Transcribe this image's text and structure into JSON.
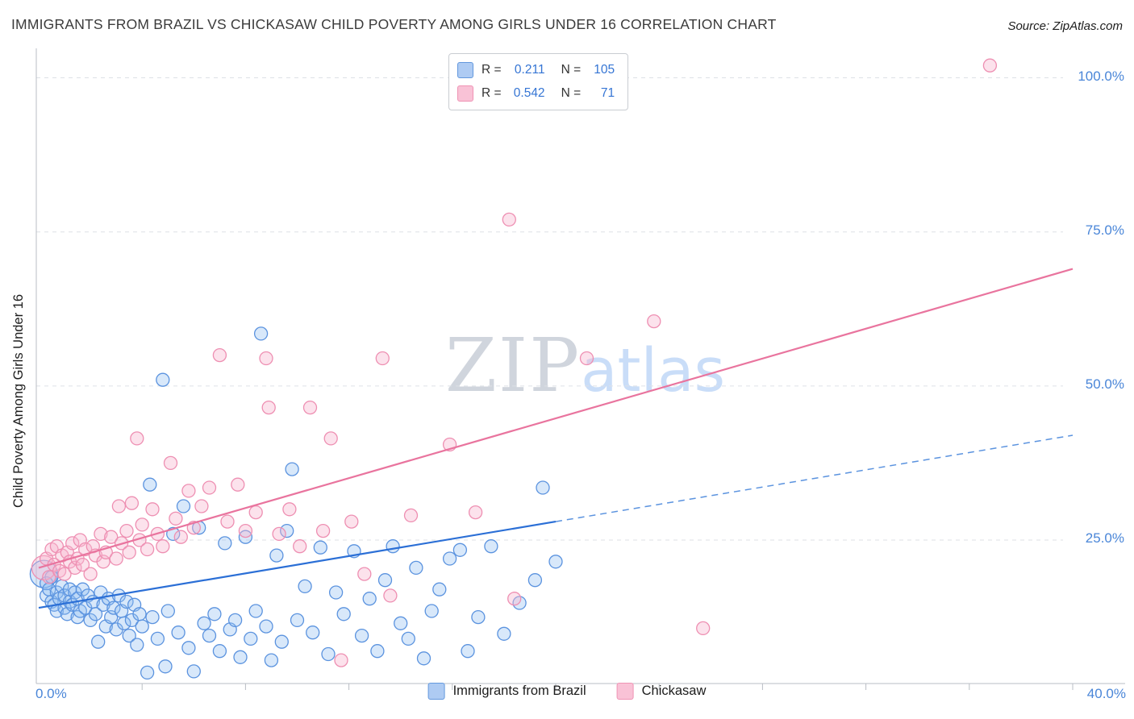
{
  "title": "IMMIGRANTS FROM BRAZIL VS CHICKASAW CHILD POVERTY AMONG GIRLS UNDER 16 CORRELATION CHART",
  "source": "Source: ZipAtlas.com",
  "watermark": {
    "zip": "ZIP",
    "atlas": "atlas"
  },
  "legend_box": {
    "r_label": "R =",
    "n_label": "N =",
    "rows": [
      {
        "series": "Immigrants from Brazil",
        "r": "0.211",
        "n": "105"
      },
      {
        "series": "Chickasaw",
        "r": "0.542",
        "n": "71"
      }
    ]
  },
  "series_legend": [
    {
      "label": "Immigrants from Brazil"
    },
    {
      "label": "Chickasaw"
    }
  ],
  "chart_data": {
    "type": "scatter",
    "title": "IMMIGRANTS FROM BRAZIL VS CHICKASAW CHILD POVERTY AMONG GIRLS UNDER 16 CORRELATION CHART",
    "xlabel": "",
    "ylabel": "Child Poverty Among Girls Under 16",
    "xlim": [
      0,
      40
    ],
    "ylim": [
      0,
      104
    ],
    "grid": "horizontal-dashed",
    "legend_position": "bottom-center",
    "x_ticks": [
      {
        "value": 0,
        "label": "0.0%"
      },
      {
        "value": 40,
        "label": "40.0%"
      }
    ],
    "y_ticks": [
      {
        "value": 100,
        "label": "100.0%"
      },
      {
        "value": 75,
        "label": "75.0%"
      },
      {
        "value": 50,
        "label": "50.0%"
      },
      {
        "value": 25,
        "label": "25.0%"
      }
    ],
    "y_gridlines": [
      25,
      50,
      75,
      100
    ],
    "x_tick_marks": [
      4,
      8,
      12,
      16,
      20,
      24,
      28,
      32,
      36,
      40
    ],
    "series": [
      {
        "id": "brazil",
        "name": "Immigrants from Brazil",
        "R": 0.211,
        "N": 105,
        "fill": "#8fbcf2",
        "stroke": "#5b93df",
        "fill_opacity": 0.35,
        "points": [
          [
            0.2,
            19.5,
            17
          ],
          [
            0.3,
            18.0
          ],
          [
            0.3,
            16.0
          ],
          [
            0.4,
            17.0
          ],
          [
            0.5,
            15.0
          ],
          [
            0.5,
            19.0
          ],
          [
            0.6,
            14.5
          ],
          [
            0.7,
            16.5
          ],
          [
            0.7,
            13.5
          ],
          [
            0.8,
            15.5
          ],
          [
            0.9,
            17.5
          ],
          [
            1.0,
            14.0
          ],
          [
            1.0,
            16.0
          ],
          [
            1.1,
            13.0
          ],
          [
            1.2,
            15.0
          ],
          [
            1.2,
            17.0
          ],
          [
            1.3,
            14.5
          ],
          [
            1.4,
            16.5
          ],
          [
            1.5,
            12.5
          ],
          [
            1.5,
            15.5
          ],
          [
            1.6,
            13.5
          ],
          [
            1.7,
            17.0
          ],
          [
            1.8,
            14.0
          ],
          [
            1.9,
            16.0
          ],
          [
            2.0,
            12.0
          ],
          [
            2.1,
            15.0
          ],
          [
            2.2,
            13.0
          ],
          [
            2.3,
            8.5
          ],
          [
            2.4,
            16.5
          ],
          [
            2.5,
            14.5
          ],
          [
            2.6,
            11.0
          ],
          [
            2.7,
            15.5
          ],
          [
            2.8,
            12.5
          ],
          [
            2.9,
            14.0
          ],
          [
            3.0,
            10.5
          ],
          [
            3.1,
            16.0
          ],
          [
            3.2,
            13.5
          ],
          [
            3.3,
            11.5
          ],
          [
            3.4,
            15.0
          ],
          [
            3.5,
            9.5
          ],
          [
            3.6,
            12.0
          ],
          [
            3.7,
            14.5
          ],
          [
            3.8,
            8.0
          ],
          [
            3.9,
            13.0
          ],
          [
            4.0,
            11.0
          ],
          [
            4.2,
            3.5
          ],
          [
            4.3,
            34.0
          ],
          [
            4.4,
            12.5
          ],
          [
            4.6,
            9.0
          ],
          [
            4.8,
            51.0
          ],
          [
            4.9,
            4.5
          ],
          [
            5.0,
            13.5
          ],
          [
            5.2,
            26.0
          ],
          [
            5.4,
            10.0
          ],
          [
            5.6,
            30.5
          ],
          [
            5.8,
            7.5
          ],
          [
            6.0,
            3.7
          ],
          [
            6.2,
            27.0
          ],
          [
            6.4,
            11.5
          ],
          [
            6.6,
            9.5
          ],
          [
            6.8,
            13.0
          ],
          [
            7.0,
            7.0
          ],
          [
            7.2,
            24.5
          ],
          [
            7.4,
            10.5
          ],
          [
            7.6,
            12.0
          ],
          [
            7.8,
            6.0
          ],
          [
            8.0,
            25.5
          ],
          [
            8.2,
            9.0
          ],
          [
            8.4,
            13.5
          ],
          [
            8.6,
            58.5
          ],
          [
            8.8,
            11.0
          ],
          [
            9.0,
            5.5
          ],
          [
            9.2,
            22.5
          ],
          [
            9.4,
            8.5
          ],
          [
            9.6,
            26.5
          ],
          [
            9.8,
            36.5
          ],
          [
            10.0,
            12.0
          ],
          [
            10.3,
            17.5
          ],
          [
            10.6,
            10.0
          ],
          [
            10.9,
            23.8
          ],
          [
            11.2,
            6.5
          ],
          [
            11.5,
            16.5
          ],
          [
            11.8,
            13.0
          ],
          [
            12.2,
            23.2
          ],
          [
            12.5,
            9.5
          ],
          [
            12.8,
            15.5
          ],
          [
            13.1,
            7.0
          ],
          [
            13.4,
            18.5
          ],
          [
            13.7,
            24.0
          ],
          [
            14.0,
            11.5
          ],
          [
            14.3,
            9.0
          ],
          [
            14.6,
            20.5
          ],
          [
            14.9,
            5.8
          ],
          [
            15.2,
            13.5
          ],
          [
            15.5,
            17.0
          ],
          [
            15.9,
            22.0
          ],
          [
            16.3,
            23.4
          ],
          [
            16.6,
            7.0
          ],
          [
            17.0,
            12.5
          ],
          [
            17.5,
            24.0
          ],
          [
            18.0,
            9.8
          ],
          [
            18.6,
            14.8
          ],
          [
            19.2,
            18.5
          ],
          [
            19.5,
            33.5
          ],
          [
            20.0,
            21.5
          ]
        ]
      },
      {
        "id": "chickasaw",
        "name": "Chickasaw",
        "R": 0.542,
        "N": 71,
        "fill": "#f7b6cf",
        "stroke": "#ee8fb2",
        "fill_opacity": 0.4,
        "points": [
          [
            0.2,
            20.5,
            15
          ],
          [
            0.3,
            22.0
          ],
          [
            0.4,
            19.0
          ],
          [
            0.5,
            23.5
          ],
          [
            0.6,
            21.0
          ],
          [
            0.7,
            24.0
          ],
          [
            0.8,
            20.0
          ],
          [
            0.9,
            22.5
          ],
          [
            1.0,
            19.5
          ],
          [
            1.1,
            23.0
          ],
          [
            1.2,
            21.5
          ],
          [
            1.3,
            24.5
          ],
          [
            1.4,
            20.5
          ],
          [
            1.5,
            22.0
          ],
          [
            1.6,
            25.0
          ],
          [
            1.7,
            21.0
          ],
          [
            1.8,
            23.5
          ],
          [
            2.0,
            19.5
          ],
          [
            2.1,
            24.0
          ],
          [
            2.2,
            22.5
          ],
          [
            2.4,
            26.0
          ],
          [
            2.5,
            21.5
          ],
          [
            2.6,
            23.0
          ],
          [
            2.8,
            25.5
          ],
          [
            3.0,
            22.0
          ],
          [
            3.1,
            30.5
          ],
          [
            3.2,
            24.5
          ],
          [
            3.4,
            26.5
          ],
          [
            3.5,
            23.0
          ],
          [
            3.6,
            31.0
          ],
          [
            3.8,
            41.5
          ],
          [
            3.9,
            25.0
          ],
          [
            4.0,
            27.5
          ],
          [
            4.2,
            23.5
          ],
          [
            4.4,
            30.0
          ],
          [
            4.6,
            26.0
          ],
          [
            4.8,
            24.0
          ],
          [
            5.1,
            37.5
          ],
          [
            5.3,
            28.5
          ],
          [
            5.5,
            25.5
          ],
          [
            5.8,
            33.0
          ],
          [
            6.0,
            27.0
          ],
          [
            6.3,
            30.5
          ],
          [
            6.6,
            33.5
          ],
          [
            7.0,
            55.0
          ],
          [
            7.3,
            28.0
          ],
          [
            7.7,
            34.0
          ],
          [
            8.0,
            26.5
          ],
          [
            8.4,
            29.5
          ],
          [
            8.8,
            54.5
          ],
          [
            8.9,
            46.5
          ],
          [
            9.3,
            26.0
          ],
          [
            9.7,
            30.0
          ],
          [
            10.1,
            24.0
          ],
          [
            10.5,
            46.5
          ],
          [
            11.0,
            26.5
          ],
          [
            11.3,
            41.5
          ],
          [
            11.7,
            5.5
          ],
          [
            12.1,
            28.0
          ],
          [
            12.6,
            19.5
          ],
          [
            13.3,
            54.5
          ],
          [
            13.6,
            16.0
          ],
          [
            14.4,
            29.0
          ],
          [
            15.9,
            40.5
          ],
          [
            16.9,
            29.5
          ],
          [
            18.2,
            77.0
          ],
          [
            18.4,
            15.5
          ],
          [
            21.2,
            54.5
          ],
          [
            23.8,
            60.5
          ],
          [
            25.7,
            10.7
          ],
          [
            36.8,
            102.0
          ]
        ]
      }
    ],
    "trend_lines": [
      {
        "id": "trendline-brazil",
        "series": "Immigrants from Brazil",
        "color": "#2b6fd6",
        "width": 2.2,
        "from": [
          0,
          14
        ],
        "to": [
          20,
          28
        ]
      },
      {
        "id": "trendline-brazil-extension",
        "series": "Immigrants from Brazil",
        "color": "#5b93df",
        "width": 1.5,
        "dash": "8 6",
        "from": [
          20,
          28
        ],
        "to": [
          40,
          42
        ]
      },
      {
        "id": "trendline-chickasaw",
        "series": "Chickasaw",
        "color": "#e9749e",
        "width": 2.2,
        "from": [
          0,
          20.5
        ],
        "to": [
          40,
          69
        ]
      }
    ]
  }
}
